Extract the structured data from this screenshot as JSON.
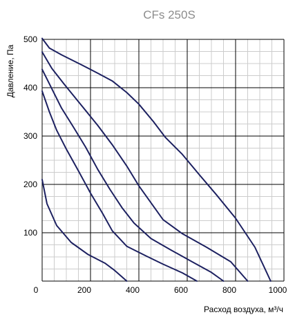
{
  "chart_data": {
    "type": "line",
    "title": "CFs 250S",
    "xlabel": "Расход воздуха, м³/ч",
    "ylabel": "Давление, Па",
    "xlim": [
      0,
      1000
    ],
    "ylim": [
      0,
      500
    ],
    "x_ticks": [
      0,
      200,
      400,
      600,
      800,
      1000
    ],
    "y_ticks": [
      100,
      200,
      300,
      400,
      500
    ],
    "x_tick_labels": [
      "0",
      "200",
      "400",
      "600",
      "800",
      "1000"
    ],
    "y_tick_labels": [
      "100",
      "200",
      "300",
      "400",
      "500"
    ],
    "grid": {
      "major": true,
      "minor": true,
      "major_step_x": 200,
      "major_step_y": 100,
      "minor_step_x": 50,
      "minor_step_y": 25
    },
    "colors": {
      "line": "#1c2060",
      "major_grid": "#000000",
      "minor_grid": "#cccccc",
      "title": "#8c8c8c"
    },
    "series": [
      {
        "x": [
          0,
          20,
          60,
          120,
          190,
          260,
          300,
          350
        ],
        "y": [
          210,
          160,
          115,
          80,
          55,
          37,
          22,
          0
        ]
      },
      {
        "x": [
          0,
          30,
          60,
          100,
          150,
          200,
          250,
          290,
          350,
          430,
          500,
          580,
          640
        ],
        "y": [
          393,
          350,
          312,
          273,
          228,
          182,
          140,
          104,
          72,
          52,
          35,
          17,
          0
        ]
      },
      {
        "x": [
          0,
          40,
          80,
          130,
          180,
          230,
          280,
          330,
          380,
          450,
          530,
          620,
          700,
          750
        ],
        "y": [
          438,
          398,
          358,
          318,
          277,
          231,
          190,
          152,
          120,
          88,
          65,
          40,
          18,
          0
        ]
      },
      {
        "x": [
          0,
          40,
          90,
          160,
          230,
          290,
          350,
          400,
          450,
          500,
          580,
          680,
          780,
          850
        ],
        "y": [
          474,
          440,
          408,
          365,
          322,
          282,
          238,
          197,
          162,
          127,
          98,
          70,
          40,
          0
        ]
      },
      {
        "x": [
          0,
          30,
          80,
          160,
          230,
          290,
          350,
          400,
          460,
          510,
          580,
          650,
          720,
          800,
          880,
          945
        ],
        "y": [
          502,
          482,
          468,
          448,
          430,
          414,
          390,
          366,
          330,
          297,
          262,
          220,
          179,
          130,
          70,
          0
        ]
      }
    ]
  }
}
